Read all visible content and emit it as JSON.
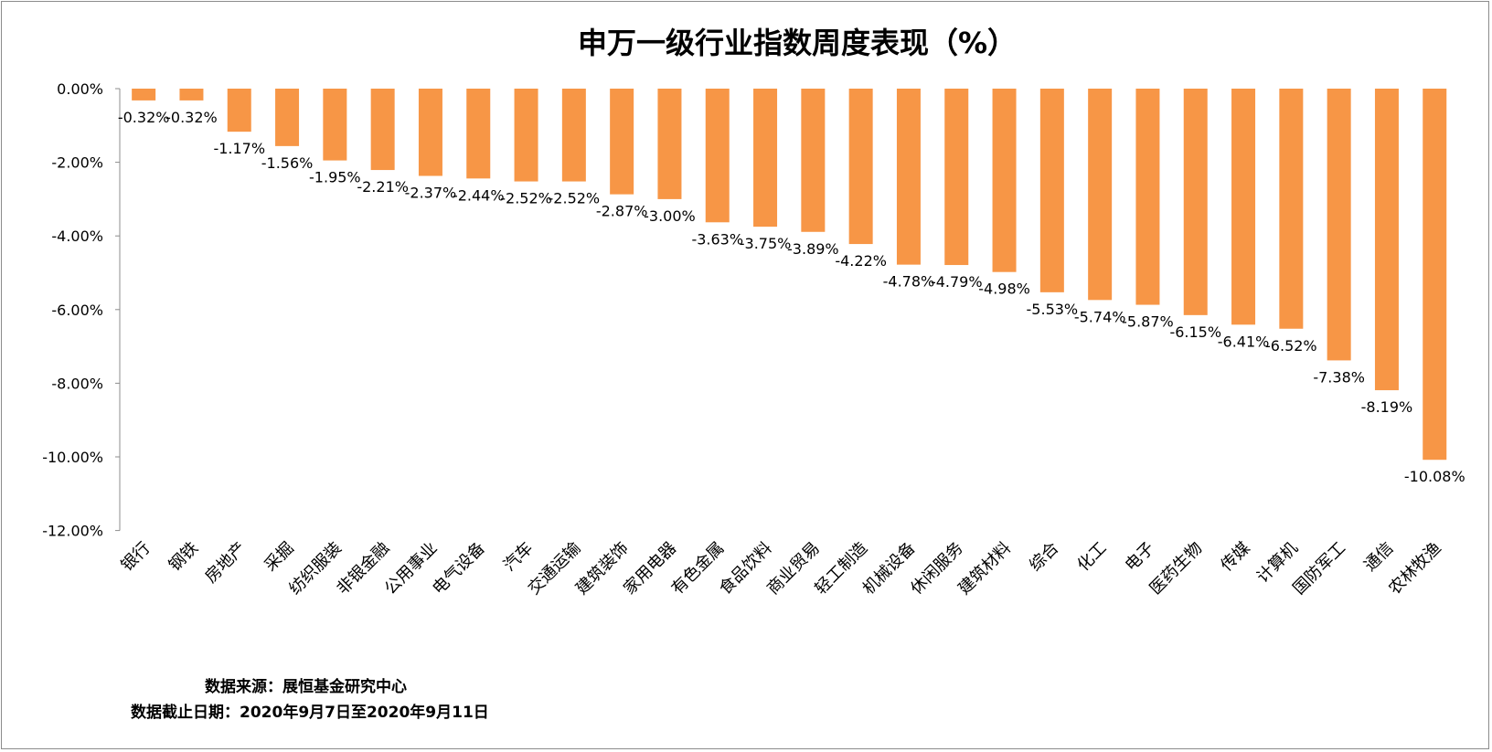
{
  "chart_data": {
    "type": "bar",
    "title": "申万一级行业指数周度表现（%）",
    "xlabel": "",
    "ylabel": "",
    "ylim": [
      -12,
      0
    ],
    "yticks": [
      "0.00%",
      "-2.00%",
      "-4.00%",
      "-6.00%",
      "-8.00%",
      "-10.00%",
      "-12.00%"
    ],
    "grid": false,
    "legend": "none",
    "bar_color": "#F79646",
    "categories": [
      "银行",
      "钢铁",
      "房地产",
      "采掘",
      "纺织服装",
      "非银金融",
      "公用事业",
      "电气设备",
      "汽车",
      "交通运输",
      "建筑装饰",
      "家用电器",
      "有色金属",
      "食品饮料",
      "商业贸易",
      "轻工制造",
      "机械设备",
      "休闲服务",
      "建筑材料",
      "综合",
      "化工",
      "电子",
      "医药生物",
      "传媒",
      "计算机",
      "国防军工",
      "通信",
      "农林牧渔"
    ],
    "values": [
      -0.32,
      -0.32,
      -1.17,
      -1.56,
      -1.95,
      -2.21,
      -2.37,
      -2.44,
      -2.52,
      -2.52,
      -2.87,
      -3.0,
      -3.63,
      -3.75,
      -3.89,
      -4.22,
      -4.78,
      -4.79,
      -4.98,
      -5.53,
      -5.74,
      -5.87,
      -6.15,
      -6.41,
      -6.52,
      -7.38,
      -8.19,
      -10.08
    ],
    "data_labels": [
      "-0.32%",
      "-0.32%",
      "-1.17%",
      "-1.56%",
      "-1.95%",
      "-2.21%",
      "-2.37%",
      "-2.44%",
      "-2.52%",
      "-2.52%",
      "-2.87%",
      "-3.00%",
      "-3.63%",
      "-3.75%",
      "-3.89%",
      "-4.22%",
      "-4.78%",
      "-4.79%",
      "-4.98%",
      "-5.53%",
      "-5.74%",
      "-5.87%",
      "-6.15%",
      "-6.41%",
      "-6.52%",
      "-7.38%",
      "-8.19%",
      "-10.08%"
    ]
  },
  "footer": {
    "source": "数据来源：展恒基金研究中心",
    "date_range": "数据截止日期：2020年9月7日至2020年9月11日"
  }
}
